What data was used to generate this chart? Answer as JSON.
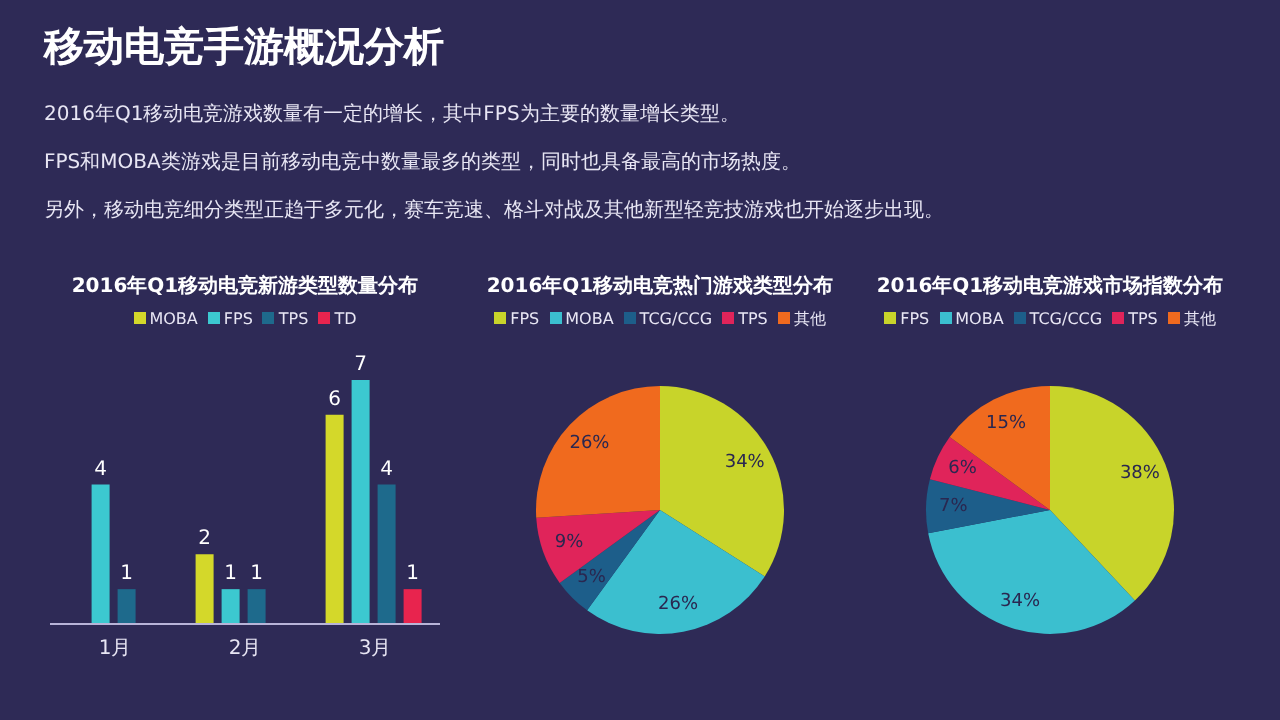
{
  "chart_data": [
    {
      "type": "other",
      "title": "移动电竞手游概况分析",
      "annotations": [
        "2016年Q1移动电竞游戏数量有一定的增长，其中FPS为主要的数量增长类型。",
        "FPS和MOBA类游戏是目前移动电竞中数量最多的类型，同时也具备最高的市场热度。",
        "另外，移动电竞细分类型正趋于多元化，赛车竞速、格斗对战及其他新型轻竞技游戏也开始逐步出现。"
      ]
    },
    {
      "type": "bar",
      "title": "2016年Q1移动电竞新游类型数量分布",
      "categories": [
        "1月",
        "2月",
        "3月"
      ],
      "series": [
        {
          "name": "MOBA",
          "color": "#d4d82a",
          "values": [
            null,
            2,
            6
          ]
        },
        {
          "name": "FPS",
          "color": "#3cc8d0",
          "values": [
            4,
            1,
            7
          ]
        },
        {
          "name": "TPS",
          "color": "#1e6a8c",
          "values": [
            1,
            1,
            4
          ]
        },
        {
          "name": "TD",
          "color": "#e8244e",
          "values": [
            null,
            null,
            1
          ]
        }
      ],
      "data_labels": true,
      "legend": "top",
      "grid": false
    },
    {
      "type": "pie",
      "title": "2016年Q1移动电竞热门游戏类型分布",
      "categories": [
        "FPS",
        "MOBA",
        "TCG/CCG",
        "TPS",
        "其他"
      ],
      "values": [
        34,
        26,
        5,
        9,
        26
      ],
      "value_labels": [
        "34%",
        "26%",
        "5%",
        "9%",
        "26%"
      ],
      "colors": [
        "#c8d42a",
        "#3bbfcf",
        "#1d5e8a",
        "#e0245a",
        "#f06a1e"
      ],
      "legend": "top"
    },
    {
      "type": "pie",
      "title": "2016年Q1移动电竞游戏市场指数分布",
      "categories": [
        "FPS",
        "MOBA",
        "TCG/CCG",
        "TPS",
        "其他"
      ],
      "values": [
        38,
        34,
        7,
        6,
        15
      ],
      "value_labels": [
        "38%",
        "34%",
        "7%",
        "6%",
        "15%"
      ],
      "colors": [
        "#c8d42a",
        "#3bbfcf",
        "#1d5e8a",
        "#e0245a",
        "#f06a1e"
      ],
      "legend": "top"
    }
  ]
}
